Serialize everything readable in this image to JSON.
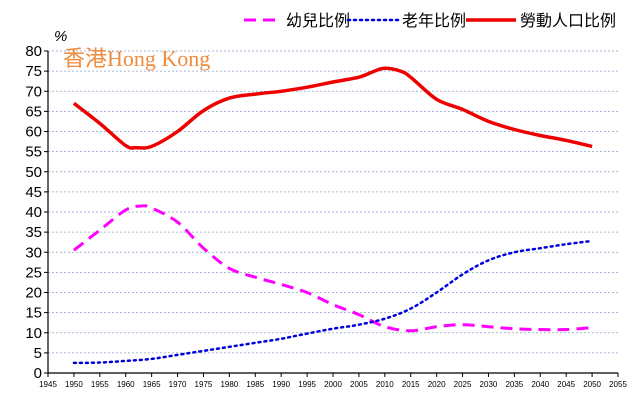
{
  "chart_data": {
    "type": "line",
    "title": "",
    "ylabel": "%",
    "xlabel": "",
    "annotation": "香港Hong Kong",
    "xlim": [
      1945,
      2055
    ],
    "ylim": [
      0,
      80
    ],
    "x_ticks": [
      1945,
      1950,
      1955,
      1960,
      1965,
      1970,
      1975,
      1980,
      1985,
      1990,
      1995,
      2000,
      2005,
      2010,
      2015,
      2020,
      2025,
      2030,
      2035,
      2040,
      2045,
      2050,
      2055
    ],
    "y_ticks": [
      0,
      5,
      10,
      15,
      20,
      25,
      30,
      35,
      40,
      45,
      50,
      55,
      60,
      65,
      70,
      75,
      80
    ],
    "grid": "horizontal dashed",
    "legend_position": "top-right",
    "series": [
      {
        "name": "幼兒比例",
        "color": "#ff00ff",
        "style": "dashed",
        "x": [
          1950,
          1955,
          1960,
          1963,
          1965,
          1970,
          1975,
          1980,
          1985,
          1990,
          1995,
          2000,
          2005,
          2010,
          2015,
          2020,
          2025,
          2030,
          2035,
          2040,
          2045,
          2050
        ],
        "y": [
          30.5,
          35.5,
          40.5,
          41.5,
          41,
          37.5,
          31,
          26,
          23.8,
          22,
          20,
          17,
          14.5,
          11.5,
          10.5,
          11.5,
          12,
          11.5,
          11,
          10.8,
          10.8,
          11.3
        ]
      },
      {
        "name": "老年比例",
        "color": "#0000dd",
        "style": "dotted",
        "x": [
          1950,
          1955,
          1960,
          1965,
          1970,
          1975,
          1980,
          1985,
          1990,
          1995,
          2000,
          2005,
          2010,
          2015,
          2020,
          2025,
          2030,
          2035,
          2040,
          2045,
          2050
        ],
        "y": [
          2.5,
          2.6,
          3,
          3.5,
          4.5,
          5.5,
          6.5,
          7.5,
          8.5,
          9.8,
          11,
          12,
          13.5,
          16,
          20,
          24.5,
          28,
          30,
          31,
          32,
          32.8
        ]
      },
      {
        "name": "勞動人口比例",
        "color": "#ee0000",
        "style": "solid",
        "x": [
          1950,
          1955,
          1960,
          1962,
          1965,
          1970,
          1975,
          1980,
          1985,
          1990,
          1995,
          2000,
          2005,
          2008,
          2010,
          2013,
          2015,
          2020,
          2025,
          2030,
          2035,
          2040,
          2045,
          2050
        ],
        "y": [
          67,
          62,
          56.5,
          56,
          56.3,
          60,
          65.2,
          68.3,
          69.3,
          70,
          71,
          72.3,
          73.5,
          75,
          75.7,
          75,
          73.5,
          68,
          65.5,
          62.5,
          60.5,
          59,
          57.8,
          56.3
        ]
      }
    ]
  }
}
